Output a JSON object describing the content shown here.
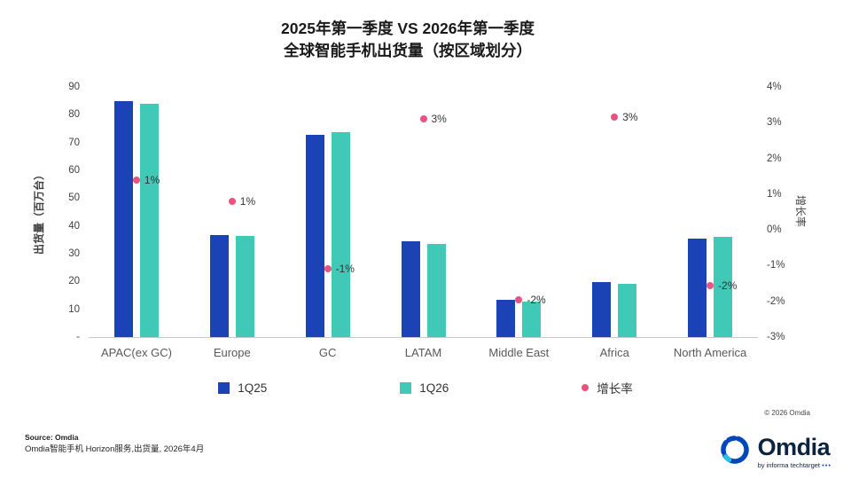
{
  "title": {
    "line1": "2025年第一季度 VS 2026年第一季度",
    "line2": "全球智能手机出货量（按区域划分）"
  },
  "chart_data": {
    "type": "bar",
    "overlay": "scatter",
    "title": "2025年第一季度 VS 2026年第一季度 全球智能手机出货量（按区域划分）",
    "categories": [
      "APAC(ex GC)",
      "Europe",
      "GC",
      "LATAM",
      "Middle East",
      "Africa",
      "North America"
    ],
    "series": [
      {
        "name": "1Q25",
        "color": "#1b43b5",
        "values": [
          85,
          36.7,
          72.8,
          34.5,
          13.3,
          19.8,
          35.4
        ]
      },
      {
        "name": "1Q26",
        "color": "#3fc9b6",
        "values": [
          84,
          36.4,
          73.6,
          33.5,
          12.8,
          19.2,
          36.2
        ]
      }
    ],
    "growth_series": {
      "name": "增长率",
      "color": "#e8537f",
      "values": [
        1.4,
        0.8,
        -1.1,
        3.1,
        -1.95,
        3.15,
        -1.55
      ],
      "labels": [
        "1%",
        "1%",
        "-1%",
        "3%",
        "-2%",
        "3%",
        "-2%"
      ]
    },
    "ylabel_left": "出货量（百万台）",
    "ylabel_right": "增长率",
    "left_axis": {
      "range": [
        0,
        90
      ],
      "tick_values": [
        0,
        10,
        20,
        30,
        40,
        50,
        60,
        70,
        80,
        90
      ],
      "tick_labels": [
        "-",
        "10",
        "20",
        "30",
        "40",
        "50",
        "60",
        "70",
        "80",
        "90"
      ]
    },
    "right_axis": {
      "range": [
        -3,
        4
      ],
      "tick_values": [
        -3,
        -2,
        -1,
        0,
        1,
        2,
        3,
        4
      ],
      "tick_labels": [
        "-3%",
        "-2%",
        "-1%",
        "0%",
        "1%",
        "2%",
        "3%",
        "4%"
      ]
    },
    "grid": "off",
    "legend_position": "bottom"
  },
  "footer": {
    "source_line1": "Source: Omdia",
    "source_line2": "Omdia智能手机 Horizon服务,出货量, 2026年4月",
    "copyright": "© 2026 Omdia",
    "logo_text": "Omdia",
    "logo_sub": "by informa techtarget",
    "logo_dots": "•••"
  }
}
